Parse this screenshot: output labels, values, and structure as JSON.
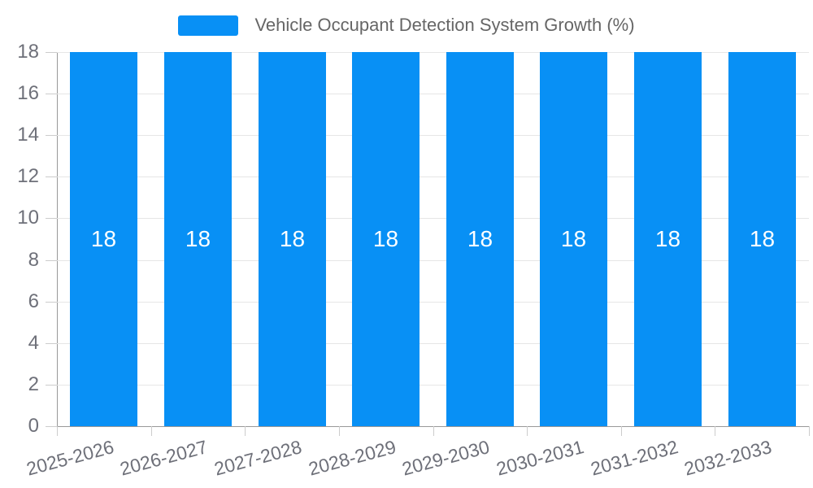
{
  "chart_data": {
    "type": "bar",
    "title": "Vehicle Occupant Detection System Growth (%)",
    "categories": [
      "2025-2026",
      "2026-2027",
      "2027-2028",
      "2028-2029",
      "2029-2030",
      "2030-2031",
      "2031-2032",
      "2032-2033"
    ],
    "series": [
      {
        "name": "Vehicle Occupant Detection System Growth (%)",
        "values": [
          18,
          18,
          18,
          18,
          18,
          18,
          18,
          18
        ],
        "bar_labels": [
          "18",
          "18",
          "18",
          "18",
          "18",
          "18",
          "18",
          "18"
        ]
      }
    ],
    "xlabel": "",
    "ylabel": "",
    "ylim": [
      0,
      18
    ],
    "yticks": [
      0,
      2,
      4,
      6,
      8,
      10,
      12,
      14,
      16,
      18
    ],
    "grid": "horizontal",
    "legend_position": "top",
    "legend": {
      "label": "Vehicle Occupant Detection System Growth (%)"
    },
    "colors": {
      "bar_fill": "#0890f5",
      "bar_label_text": "#ffffff",
      "legend_text": "#666666",
      "axis_label_text": "#6e7079",
      "axis_line": "#999999",
      "gridline": "#e6e6e6",
      "tick_line": "#cccccc",
      "background": "#ffffff"
    }
  }
}
